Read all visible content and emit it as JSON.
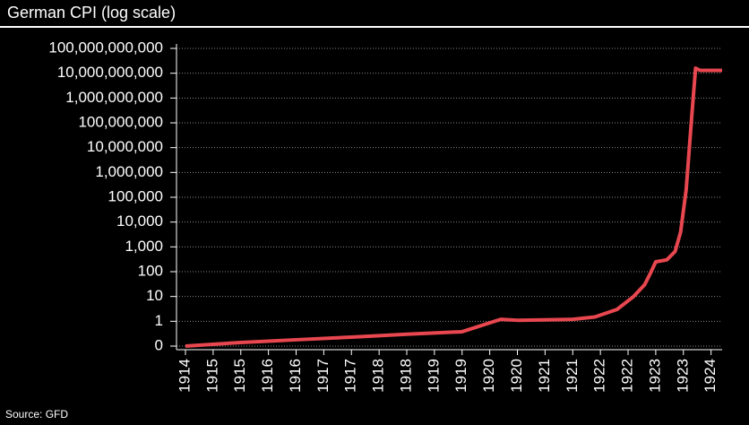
{
  "chart_data": {
    "type": "line",
    "title": "German CPI (log scale)",
    "source": "Source: GFD",
    "x": [
      1914.5,
      1915.5,
      1916.5,
      1917.5,
      1918.5,
      1919.5,
      1920.2,
      1920.5,
      1921.5,
      1921.9,
      1922.3,
      1922.6,
      1922.8,
      1922.9,
      1923.0,
      1923.2,
      1923.35,
      1923.45,
      1923.55,
      1923.65,
      1923.72,
      1923.8,
      1924.2
    ],
    "series": [
      {
        "name": "German CPI",
        "color": "#e8474f",
        "values": [
          0.1,
          0.14,
          0.18,
          0.23,
          0.3,
          0.38,
          1.2,
          1.1,
          1.2,
          1.5,
          3,
          10,
          30,
          83,
          250,
          300,
          650,
          4000,
          200000,
          170000000,
          16000000000,
          13000000000,
          13000000000
        ]
      }
    ],
    "xlim": [
      1914.5,
      1924.2
    ],
    "xticks": [
      {
        "value": 1914.5,
        "label": "1914"
      },
      {
        "value": 1915.0,
        "label": "1915"
      },
      {
        "value": 1915.5,
        "label": "1915"
      },
      {
        "value": 1916.0,
        "label": "1916"
      },
      {
        "value": 1916.5,
        "label": "1916"
      },
      {
        "value": 1917.0,
        "label": "1917"
      },
      {
        "value": 1917.5,
        "label": "1917"
      },
      {
        "value": 1918.0,
        "label": "1918"
      },
      {
        "value": 1918.5,
        "label": "1918"
      },
      {
        "value": 1919.0,
        "label": "1919"
      },
      {
        "value": 1919.5,
        "label": "1919"
      },
      {
        "value": 1920.0,
        "label": "1920"
      },
      {
        "value": 1920.5,
        "label": "1920"
      },
      {
        "value": 1921.0,
        "label": "1921"
      },
      {
        "value": 1921.5,
        "label": "1921"
      },
      {
        "value": 1922.0,
        "label": "1922"
      },
      {
        "value": 1922.5,
        "label": "1922"
      },
      {
        "value": 1923.0,
        "label": "1923"
      },
      {
        "value": 1923.5,
        "label": "1923"
      },
      {
        "value": 1924.0,
        "label": "1924"
      }
    ],
    "ylim": [
      0.1,
      100000000000
    ],
    "log_y": true,
    "grid": true,
    "yticks": [
      {
        "value": 0.1,
        "label": "0"
      },
      1,
      10,
      100,
      {
        "value": 1000,
        "label": "1,000"
      },
      {
        "value": 10000,
        "label": "10,000"
      },
      {
        "value": 100000,
        "label": "100,000"
      },
      {
        "value": 1000000,
        "label": "1,000,000"
      },
      {
        "value": 10000000,
        "label": "10,000,000"
      },
      {
        "value": 100000000,
        "label": "100,000,000"
      },
      {
        "value": 1000000000,
        "label": "1,000,000,000"
      },
      {
        "value": 10000000000,
        "label": "10,000,000,000"
      },
      {
        "value": 100000000000,
        "label": "100,000,000,000"
      }
    ]
  }
}
